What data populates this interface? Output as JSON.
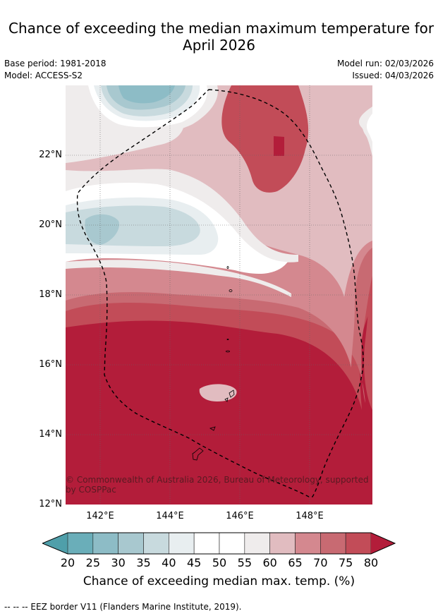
{
  "title": {
    "line1": "Chance of exceeding the median maximum temperature for",
    "line2": "April 2026"
  },
  "meta": {
    "base_period": "Base period: 1981-2018",
    "model": "Model: ACCESS-S2",
    "model_run": "Model run: 02/03/2026",
    "issued": "Issued: 04/03/2026"
  },
  "map": {
    "lat_labels": [
      "22°N",
      "20°N",
      "18°N",
      "16°N",
      "14°N",
      "12°N"
    ],
    "lon_labels": [
      "142°E",
      "144°E",
      "146°E",
      "148°E"
    ],
    "copyright": "© Commonwealth of Australia 2026, Bureau of Meteorology, supported by COSPPac",
    "colors": {
      "c20": "#6aaeb9",
      "c25": "#8dbcc6",
      "c30": "#a8c8cf",
      "c35": "#c8dade",
      "c40": "#e8eef0",
      "c45": "#ffffff",
      "c55": "#efecec",
      "c60": "#e1bcc0",
      "c65": "#d4888f",
      "c70": "#c86a72",
      "c75": "#c24c58",
      "c80": "#b31d3a"
    }
  },
  "colorbar": {
    "ticks": [
      "20",
      "25",
      "30",
      "35",
      "40",
      "45",
      "50",
      "55",
      "60",
      "65",
      "70",
      "75",
      "80"
    ],
    "colors": [
      "#4f9faa",
      "#6aaeb9",
      "#8dbcc6",
      "#a8c8cf",
      "#c8dade",
      "#e8eef0",
      "#ffffff",
      "#ffffff",
      "#efecec",
      "#e1bcc0",
      "#d4888f",
      "#c86a72",
      "#c24c58",
      "#b31d3a"
    ],
    "title": "Chance of exceeding median max. temp. (%)"
  },
  "footnote": "--  --  -- EEZ border V11 (Flanders Marine Institute, 2019)."
}
